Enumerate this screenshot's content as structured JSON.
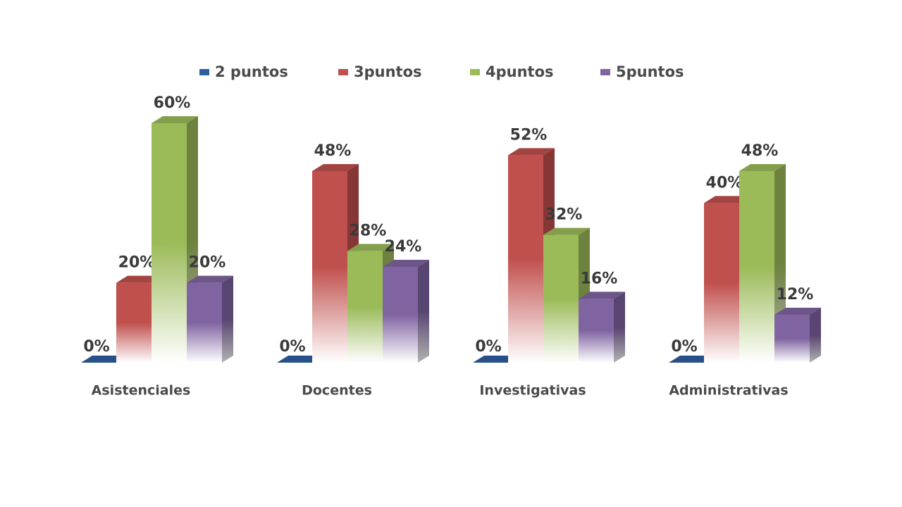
{
  "chart_data": {
    "type": "bar3d",
    "categories": [
      "Asistenciales",
      "Docentes",
      "Investigativas",
      "Administrativas"
    ],
    "series": [
      {
        "name": "2 puntos",
        "color": "#2e5fa3",
        "values": [
          0,
          0,
          0,
          0
        ],
        "value_labels": [
          "0%",
          "0%",
          "0%",
          "0%"
        ]
      },
      {
        "name": "3puntos",
        "color": "#c0504d",
        "values": [
          20,
          48,
          52,
          40
        ],
        "value_labels": [
          "20%",
          "48%",
          "52%",
          "40%"
        ]
      },
      {
        "name": "4puntos",
        "color": "#9bbb59",
        "values": [
          60,
          28,
          32,
          48
        ],
        "value_labels": [
          "60%",
          "28%",
          "32%",
          "48%"
        ]
      },
      {
        "name": "5puntos",
        "color": "#8064a2",
        "values": [
          20,
          24,
          16,
          12
        ],
        "value_labels": [
          "20%",
          "24%",
          "16%",
          "12%"
        ]
      }
    ],
    "legend": "top"
  }
}
